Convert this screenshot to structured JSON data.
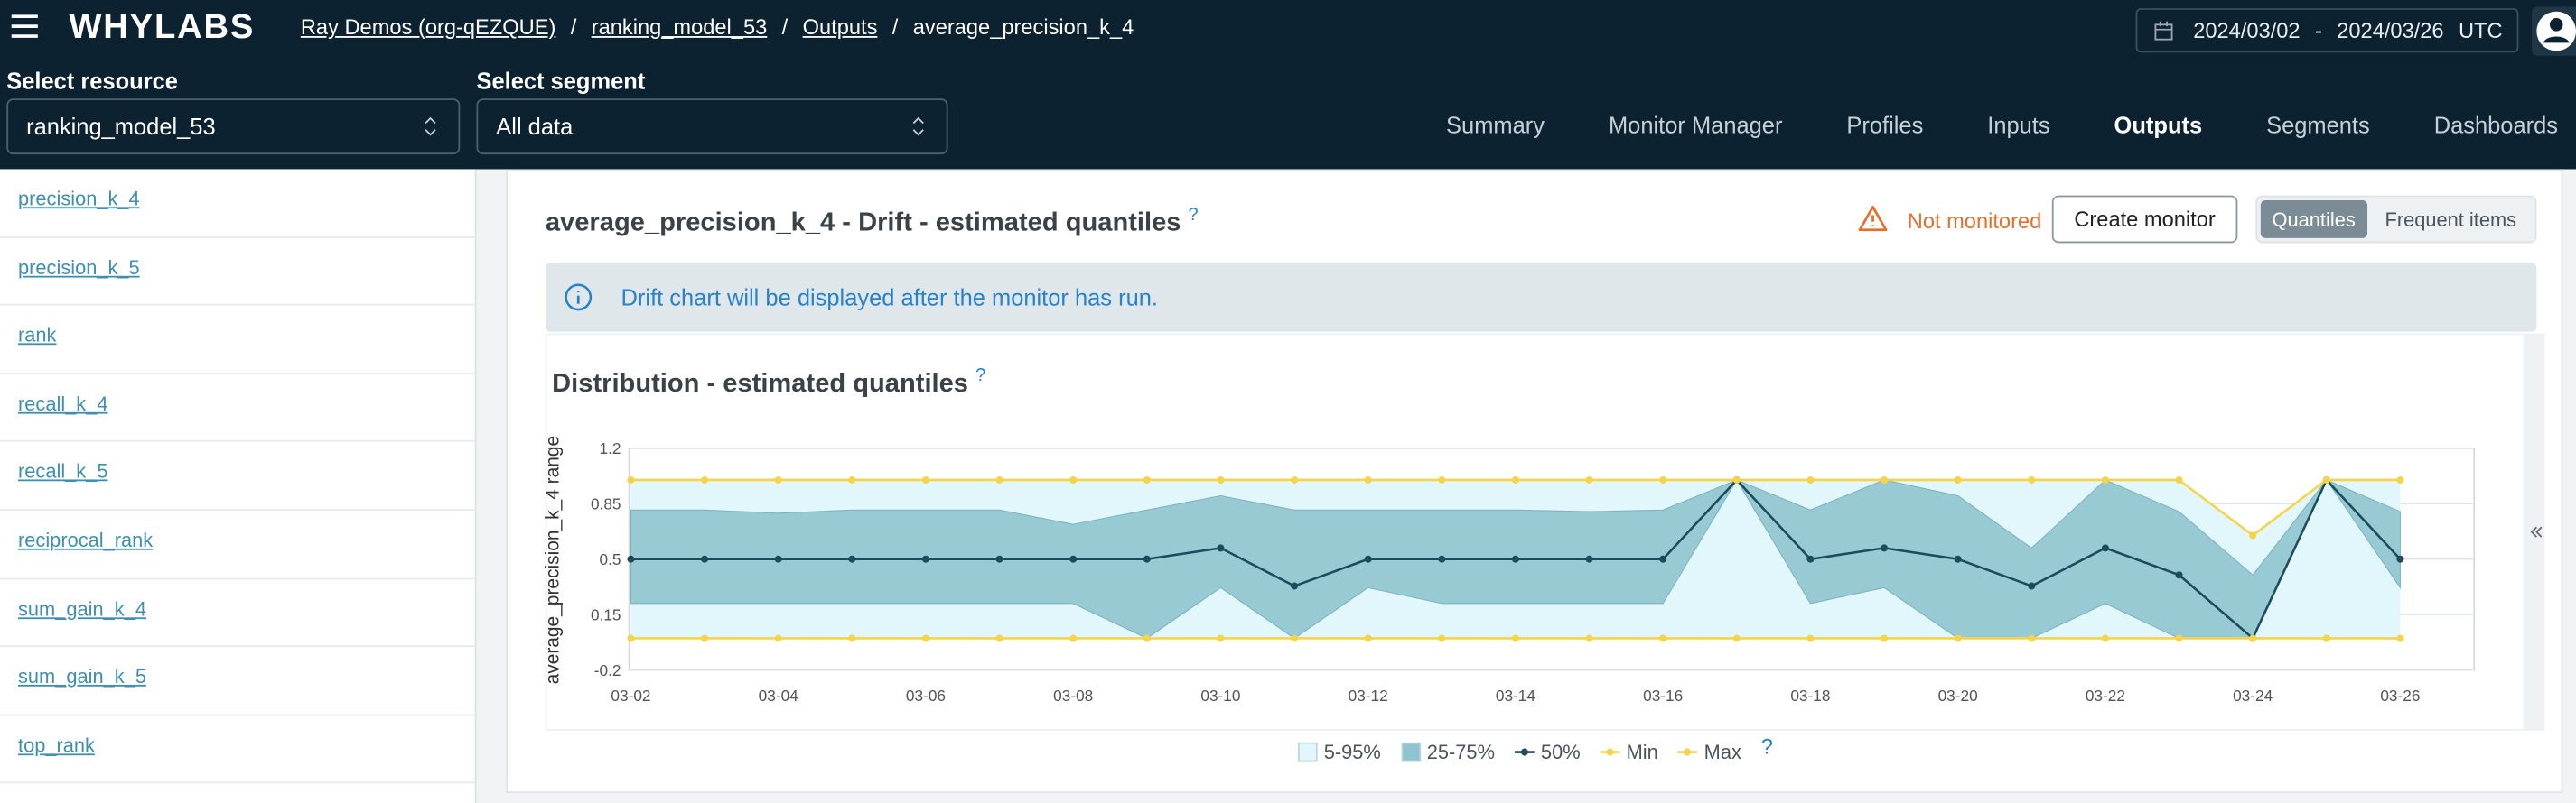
{
  "header": {
    "logo": "WHYLABS",
    "breadcrumbs": [
      "Ray Demos (org-qEZQUE)",
      "ranking_model_53",
      "Outputs",
      "average_precision_k_4"
    ],
    "separator": "/",
    "date_start": "2024/03/02",
    "date_separator": "-",
    "date_end": "2024/03/26",
    "timezone": "UTC"
  },
  "resource": {
    "label": "Select resource",
    "value": "ranking_model_53"
  },
  "segment": {
    "label": "Select segment",
    "value": "All data"
  },
  "nav": {
    "tabs": [
      "Summary",
      "Monitor Manager",
      "Profiles",
      "Inputs",
      "Outputs",
      "Segments",
      "Dashboards"
    ],
    "active": 4
  },
  "sidebar": {
    "items": [
      "precision_k_4",
      "precision_k_5",
      "rank",
      "recall_k_4",
      "recall_k_5",
      "reciprocal_rank",
      "sum_gain_k_4",
      "sum_gain_k_5",
      "top_rank"
    ]
  },
  "panel": {
    "title": "average_precision_k_4 - Drift - estimated quantiles",
    "help": "?",
    "status": "Not monitored",
    "button": "Create monitor",
    "toggle": [
      "Quantiles",
      "Frequent items"
    ],
    "toggle_active": 0,
    "info": "Drift chart will be displayed after the monitor has run."
  },
  "chart_data": {
    "type": "quantile_band",
    "title": "Distribution - estimated quantiles",
    "title_help": "?",
    "y_label": "average_precision_k_4 range",
    "categories": [
      "03-02",
      null,
      "03-04",
      null,
      "03-06",
      null,
      "03-08",
      null,
      "03-10",
      null,
      "03-12",
      null,
      "03-14",
      null,
      "03-16",
      null,
      "03-18",
      null,
      "03-20",
      null,
      "03-22",
      null,
      "03-24",
      null,
      "03-26"
    ],
    "ylim": [
      -0.2,
      1.2
    ],
    "yticks": [
      -0.2,
      0.15,
      0.5,
      0.85,
      1.2
    ],
    "grid": true,
    "legend": "bottom",
    "legend_help": "?",
    "series": [
      {
        "name": "5-95%",
        "color": "#e2f7fb",
        "lower": [
          0,
          0,
          0,
          0,
          0,
          0,
          0,
          0,
          0,
          0,
          0,
          0,
          0,
          0,
          0,
          0,
          0,
          0,
          0,
          0,
          0,
          0,
          0,
          0,
          0
        ],
        "upper": [
          1,
          1,
          1,
          1,
          1,
          1,
          1,
          1,
          1,
          1,
          1,
          1,
          1,
          1,
          1,
          1,
          1,
          1,
          1,
          1,
          1,
          1,
          0.65,
          1,
          1
        ]
      },
      {
        "name": "25-75%",
        "color": "#8fc4ce",
        "lower": [
          0.22,
          0.22,
          0.22,
          0.22,
          0.22,
          0.22,
          0.22,
          0,
          0.32,
          0,
          0.32,
          0.22,
          0.22,
          0.22,
          0.22,
          1,
          0.22,
          0.32,
          0,
          0,
          0.22,
          0,
          0,
          1,
          0.32
        ],
        "upper": [
          0.81,
          0.81,
          0.79,
          0.81,
          0.81,
          0.81,
          0.72,
          0.81,
          0.9,
          0.81,
          0.81,
          0.81,
          0.81,
          0.8,
          0.81,
          1,
          0.81,
          1,
          0.9,
          0.57,
          1,
          0.8,
          0.4,
          1,
          0.8
        ]
      },
      {
        "name": "50%",
        "color": "#1d4b5b",
        "values": [
          0.5,
          0.5,
          0.5,
          0.5,
          0.5,
          0.5,
          0.5,
          0.5,
          0.57,
          0.33,
          0.5,
          0.5,
          0.5,
          0.5,
          0.5,
          1,
          0.5,
          0.57,
          0.5,
          0.33,
          0.57,
          0.4,
          0,
          1,
          0.5
        ]
      },
      {
        "name": "Min",
        "color": "#f5d44a",
        "values": [
          0,
          0,
          0,
          0,
          0,
          0,
          0,
          0,
          0,
          0,
          0,
          0,
          0,
          0,
          0,
          0,
          0,
          0,
          0,
          0,
          0,
          0,
          0,
          0,
          0
        ]
      },
      {
        "name": "Max",
        "color": "#f5d44a",
        "values": [
          1,
          1,
          1,
          1,
          1,
          1,
          1,
          1,
          1,
          1,
          1,
          1,
          1,
          1,
          1,
          1,
          1,
          1,
          1,
          1,
          1,
          1,
          0.65,
          1,
          1
        ]
      }
    ]
  }
}
